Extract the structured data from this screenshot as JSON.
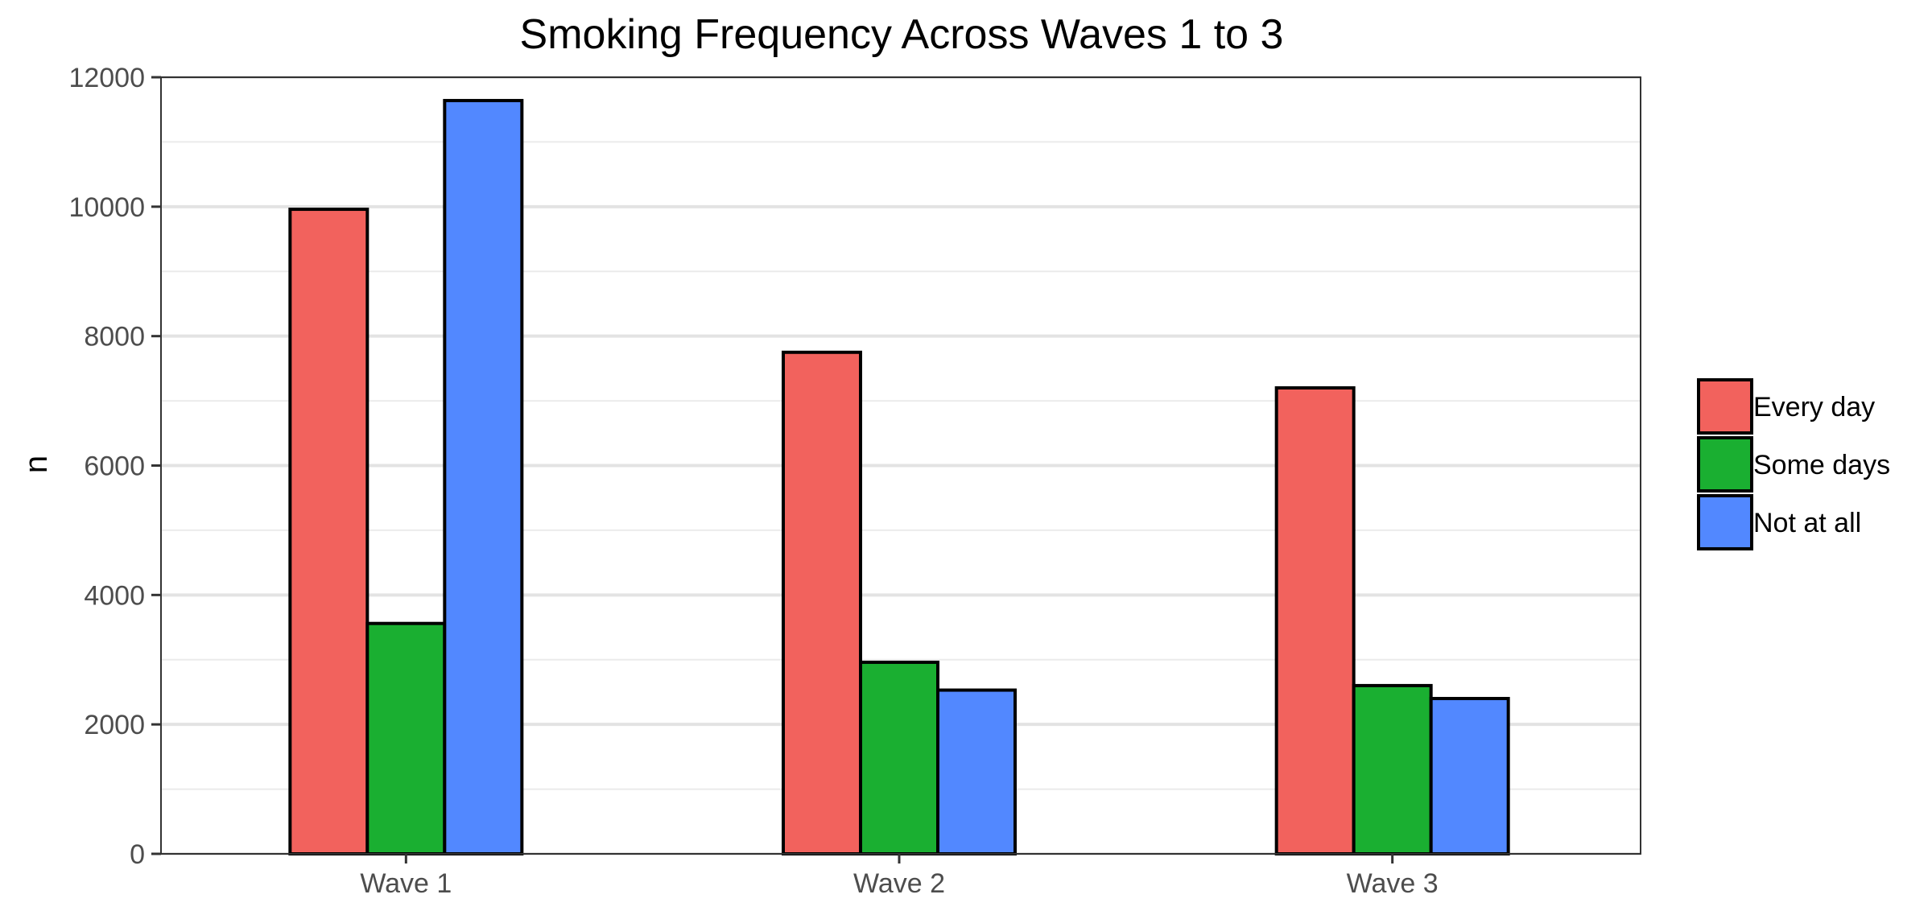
{
  "chart_data": {
    "type": "bar",
    "title": "Smoking Frequency Across Waves 1 to 3",
    "xlabel": "",
    "ylabel": "n",
    "categories": [
      "Wave 1",
      "Wave 2",
      "Wave 3"
    ],
    "ylim": [
      0,
      12000
    ],
    "yticks": [
      0,
      2000,
      4000,
      6000,
      8000,
      10000,
      12000
    ],
    "grid": true,
    "legend_position": "right",
    "series": [
      {
        "name": "Every day",
        "color": "#F2625D",
        "values": [
          9960,
          7750,
          7200
        ]
      },
      {
        "name": "Some days",
        "color": "#1AAF31",
        "values": [
          3560,
          2960,
          2600
        ]
      },
      {
        "name": "Not at all",
        "color": "#5288FF",
        "values": [
          11640,
          2530,
          2400
        ]
      }
    ]
  }
}
